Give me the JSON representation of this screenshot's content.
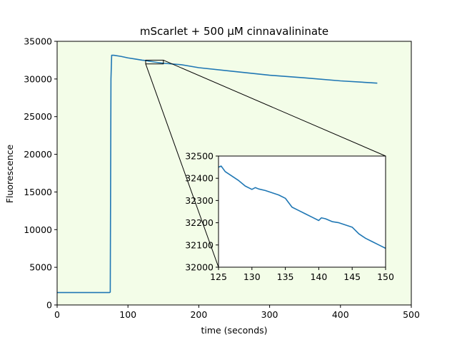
{
  "chart_data": [
    {
      "type": "line",
      "title": "mScarlet + 500 µM cinnavalininate",
      "xlabel": "time (seconds)",
      "ylabel": "Fluorescence",
      "xlim": [
        0,
        500
      ],
      "ylim": [
        0,
        35000
      ],
      "xticks": [
        0,
        100,
        200,
        300,
        400,
        500
      ],
      "yticks": [
        0,
        5000,
        10000,
        15000,
        20000,
        25000,
        30000,
        35000
      ],
      "background_color": "#f3fde8",
      "grid": false,
      "series": [
        {
          "color": "#1f77b4",
          "x": [
            0,
            74,
            75,
            76,
            77,
            80,
            90,
            100,
            110,
            120,
            125,
            130,
            140,
            150,
            175,
            200,
            250,
            300,
            350,
            400,
            452
          ],
          "y": [
            1650,
            1650,
            1700,
            30000,
            33150,
            33150,
            33000,
            32800,
            32650,
            32500,
            32450,
            32360,
            32220,
            32090,
            31900,
            31500,
            31000,
            30500,
            30150,
            29750,
            29450
          ]
        }
      ],
      "zoom_box": {
        "x": [
          125,
          150
        ],
        "y": [
          32000,
          32500
        ]
      }
    },
    {
      "type": "line",
      "title": "",
      "xlabel": "",
      "ylabel": "",
      "xlim": [
        125,
        150
      ],
      "ylim": [
        32000,
        32500
      ],
      "xticks": [
        125,
        130,
        135,
        140,
        145,
        150
      ],
      "yticks": [
        32000,
        32100,
        32200,
        32300,
        32400,
        32500
      ],
      "background_color": "#ffffff",
      "grid": false,
      "series": [
        {
          "color": "#1f77b4",
          "x": [
            125,
            125.4,
            126,
            127,
            128,
            129,
            130,
            130.5,
            131,
            132,
            133,
            134,
            135,
            135.5,
            136,
            137,
            138,
            139,
            140,
            140.4,
            141,
            142,
            143,
            144,
            145,
            146,
            147,
            148,
            149,
            150
          ],
          "y": [
            32450,
            32455,
            32430,
            32410,
            32390,
            32365,
            32350,
            32358,
            32352,
            32345,
            32335,
            32325,
            32310,
            32290,
            32270,
            32255,
            32240,
            32225,
            32210,
            32222,
            32218,
            32205,
            32200,
            32190,
            32180,
            32150,
            32130,
            32115,
            32100,
            32085
          ]
        }
      ]
    }
  ]
}
